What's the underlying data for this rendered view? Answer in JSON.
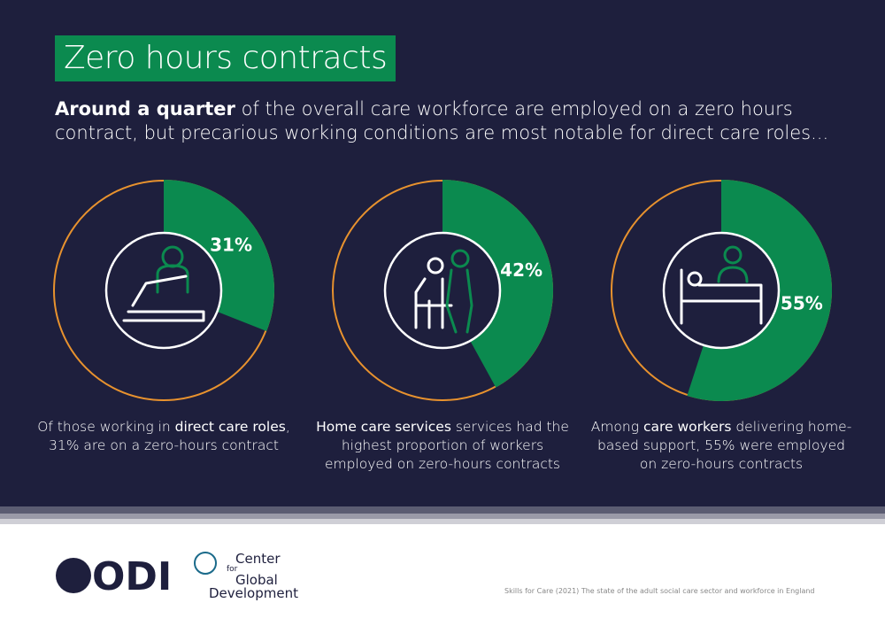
{
  "title": "Zero hours contracts",
  "subtitle": {
    "lead": "Around a quarter",
    "rest": " of the overall care workforce are employed on a zero hours contract, but precarious working conditions are most notable for direct care roles..."
  },
  "chart_data": [
    {
      "type": "pie",
      "values": [
        31
      ],
      "value_labels": [
        "31%"
      ],
      "color": "#0b8a4f",
      "outline_color": "#e8922e",
      "caption": [
        "Of those working in ",
        "direct care roles",
        ", 31% are on a zero-hours contract"
      ]
    },
    {
      "type": "pie",
      "values": [
        42
      ],
      "value_labels": [
        "42%"
      ],
      "color": "#0b8a4f",
      "outline_color": "#e8922e",
      "caption": [
        "Home care services",
        " services had the highest proportion of workers employed on zero-hours contracts"
      ]
    },
    {
      "type": "pie",
      "values": [
        55
      ],
      "value_labels": [
        "55%"
      ],
      "color": "#0b8a4f",
      "outline_color": "#e8922e",
      "caption": [
        "Among ",
        "care workers",
        " delivering home-based support, 55% were employed on zero-hours contracts"
      ]
    }
  ],
  "logos": {
    "odi": "ODI",
    "cgd": [
      "Center",
      "for",
      "Global",
      "Development"
    ]
  },
  "source": "Skills for Care (2021) The state of the adult social care sector and workforce in England"
}
